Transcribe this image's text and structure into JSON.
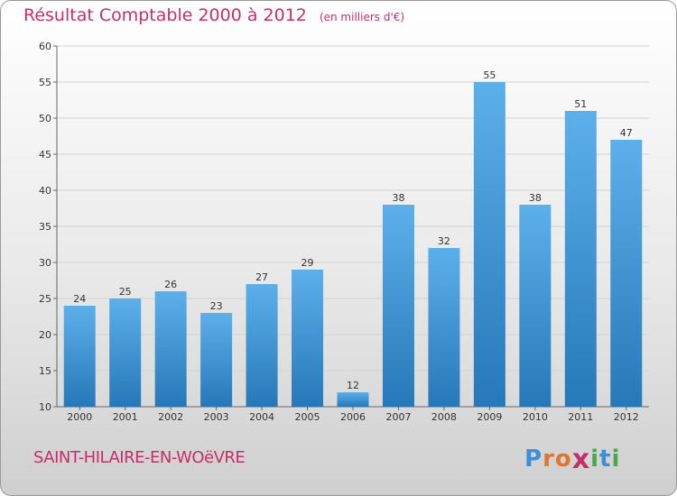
{
  "header": {
    "title": "Résultat Comptable 2000 à 2012",
    "subtitle": "(en milliers d'€)"
  },
  "footer": {
    "commune": "SAINT-HILAIRE-EN-WOëVRE",
    "brand_letters": [
      "P",
      "r",
      "o",
      "x",
      "i",
      "t",
      "i"
    ]
  },
  "colors": {
    "title": "#c42f6b",
    "bar_top": "#5cb0ea",
    "bar_bottom": "#2678b8",
    "brand": [
      "#3a8fd8",
      "#e0752d",
      "#e0752d",
      "#c42f6b",
      "#49a84a",
      "#3a8fd8",
      "#49a84a"
    ]
  },
  "chart_data": {
    "type": "bar",
    "title": "Résultat Comptable 2000 à 2012",
    "xlabel": "",
    "ylabel": "",
    "categories": [
      "2000",
      "2001",
      "2002",
      "2003",
      "2004",
      "2005",
      "2006",
      "2007",
      "2008",
      "2009",
      "2010",
      "2011",
      "2012"
    ],
    "values": [
      24,
      25,
      26,
      23,
      27,
      29,
      12,
      38,
      32,
      55,
      38,
      51,
      47
    ],
    "ylim": [
      10,
      60
    ],
    "yticks": [
      10,
      15,
      20,
      25,
      30,
      35,
      40,
      45,
      50,
      55,
      60
    ],
    "grid": true
  }
}
